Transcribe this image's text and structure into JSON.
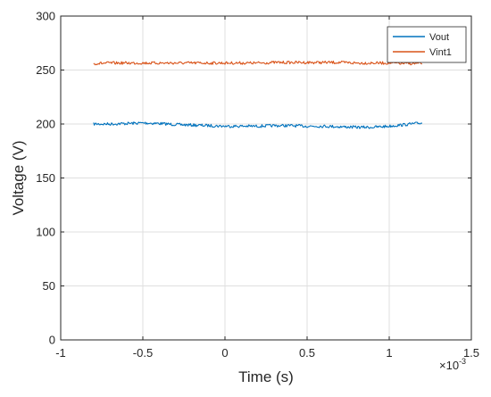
{
  "chart_data": {
    "type": "line",
    "title": "",
    "xlabel": "Time (s)",
    "ylabel": "Voltage (V)",
    "x_exponent_label": "×10",
    "x_exponent_power": "-3",
    "xlim": [
      -1,
      1.5
    ],
    "ylim": [
      0,
      300
    ],
    "xticks": [
      -1,
      -0.5,
      0,
      0.5,
      1,
      1.5
    ],
    "xtick_labels": [
      "-1",
      "-0.5",
      "0",
      "0.5",
      "1",
      "1.5"
    ],
    "yticks": [
      0,
      50,
      100,
      150,
      200,
      250,
      300
    ],
    "ytick_labels": [
      "0",
      "50",
      "100",
      "150",
      "200",
      "250",
      "300"
    ],
    "grid": true,
    "legend_position": "top-right",
    "series": [
      {
        "name": "Vout",
        "color": "#0072BD",
        "x": [
          -0.8,
          -0.7,
          -0.6,
          -0.5,
          -0.4,
          -0.3,
          -0.2,
          -0.1,
          0,
          0.1,
          0.2,
          0.3,
          0.4,
          0.5,
          0.6,
          0.7,
          0.8,
          0.9,
          1.0,
          1.1,
          1.2
        ],
        "y": [
          200,
          200,
          200.5,
          201,
          200.5,
          199.5,
          199,
          198.5,
          198,
          198,
          198,
          198.5,
          198.5,
          198,
          198,
          197.5,
          197,
          197,
          198,
          199.5,
          201
        ]
      },
      {
        "name": "Vint1",
        "color": "#D95319",
        "x": [
          -0.8,
          -0.7,
          -0.6,
          -0.5,
          -0.4,
          -0.3,
          -0.2,
          -0.1,
          0,
          0.1,
          0.2,
          0.3,
          0.4,
          0.5,
          0.6,
          0.7,
          0.8,
          0.9,
          1.0,
          1.1,
          1.2
        ],
        "y": [
          256,
          256.5,
          256.5,
          256.5,
          256.5,
          256.5,
          256.5,
          256.5,
          256.5,
          256.5,
          256.5,
          257,
          257,
          257,
          257,
          257,
          256.5,
          256.5,
          256.5,
          256,
          256
        ]
      }
    ]
  }
}
